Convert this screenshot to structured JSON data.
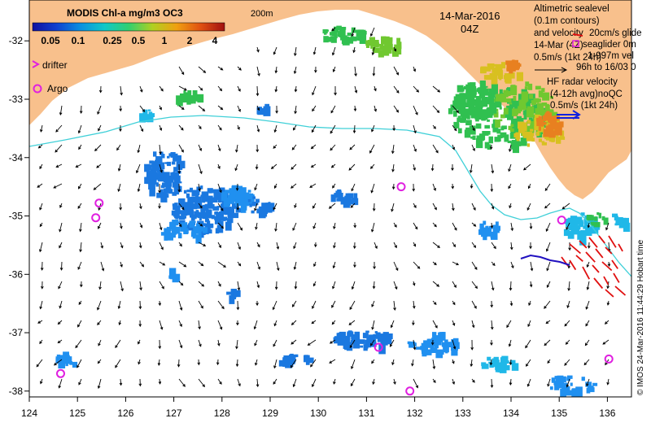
{
  "colorbar": {
    "title": "MODIS Chl-a mg/m3 OC3",
    "ticks": [
      "0.05",
      "0.1",
      "0.25",
      "0.5",
      "1",
      "2",
      "4"
    ],
    "colors": [
      "#1010a0",
      "#1040d0",
      "#0a90e0",
      "#10c8c8",
      "#30d070",
      "#b0d020",
      "#f0a010",
      "#e05010",
      "#a01010"
    ]
  },
  "legend_left": {
    "drifter": "drifter",
    "argo": "Argo"
  },
  "isobath_label": "200m",
  "date": "14-Mar-2016",
  "time": "04Z",
  "legend_right": {
    "line1": "Altimetric sealevel",
    "line2": "(0.1m contours)",
    "line3": "and velocity",
    "line4": "14-Mar (4Z)",
    "scale1": "0.5m/s (1kt 24h)",
    "glider_overlay1": "20cm/s glide",
    "glider_overlay2": "seaglider 0m",
    "glider_overlay3": "1-997m vel",
    "glider_overlay4": "96h to 16/03 0",
    "hf_line1": "HF radar velocity",
    "hf_line2": "(4-12h avg)noQC",
    "hf_scale": "0.5m/s (1kt 24h)"
  },
  "credit": "© IMOS 24-Mar-2016 11:44:29 Hobart time",
  "axes": {
    "x_ticks": [
      "124",
      "125",
      "126",
      "127",
      "128",
      "129",
      "130",
      "131",
      "132",
      "133",
      "134",
      "135",
      "136"
    ],
    "y_ticks": [
      "-32",
      "-33",
      "-34",
      "-35",
      "-36",
      "-37",
      "-38"
    ],
    "lon_range": [
      124,
      136.5
    ],
    "lat_range": [
      -31.3,
      -38.1
    ]
  },
  "argo_points": [
    {
      "lon": 125.45,
      "lat": -34.78
    },
    {
      "lon": 125.38,
      "lat": -35.03
    },
    {
      "lon": 131.72,
      "lat": -34.5
    },
    {
      "lon": 131.25,
      "lat": -37.25
    },
    {
      "lon": 124.65,
      "lat": -37.7
    },
    {
      "lon": 131.9,
      "lat": -38.0
    },
    {
      "lon": 136.03,
      "lat": -37.45
    },
    {
      "lon": 135.05,
      "lat": -35.07
    }
  ],
  "colors": {
    "land": "#f8c08c",
    "isobath": "#40d0d8",
    "argo": "#e020e0",
    "hf_radar": "#e01010",
    "glider": "#2010c0",
    "scale_arrow": "#1020e0",
    "legend_drifter": "#e020e0"
  }
}
